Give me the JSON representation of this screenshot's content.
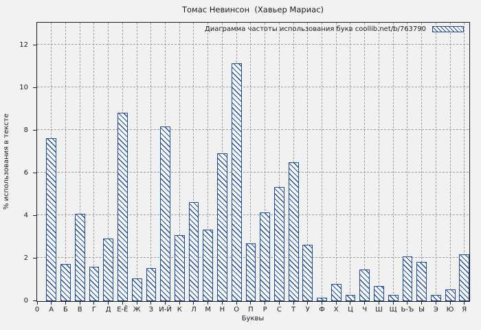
{
  "window": {
    "title": "Томас Невинсон  (Хавьер Мариас)"
  },
  "legend": {
    "label": "Диаграмма частоты использования букв coollib.net/b/763790"
  },
  "axes": {
    "x_label": "Буквы",
    "y_label": "% использования в тексте",
    "x_tick_labels": [
      "0",
      "А",
      "Б",
      "В",
      "Г",
      "Д",
      "Е-Ё",
      "Ж",
      "З",
      "И-Й",
      "К",
      "Л",
      "М",
      "Н",
      "О",
      "П",
      "Р",
      "С",
      "Т",
      "У",
      "Ф",
      "Х",
      "Ц",
      "Ч",
      "Ш",
      "Щ",
      "Ь-Ъ",
      "Ы",
      "Э",
      "Ю",
      "Я"
    ],
    "y_tick_labels": [
      "0",
      "2",
      "4",
      "6",
      "8",
      "10",
      "12"
    ]
  },
  "colors": {
    "bar_blue": "#1b4ba0",
    "background": "#f2f2f2",
    "grid": "#9c9c9c"
  },
  "chart_data": {
    "type": "bar",
    "title": "Томас Невинсон (Хавьер Мариас)",
    "legend_entry": "Диаграмма частоты использования букв coollib.net/b/763790",
    "legend_position": "top-right-inside",
    "xlabel": "Буквы",
    "ylabel": "% использования в тексте",
    "ylim": [
      0,
      13
    ],
    "y_ticks": [
      0,
      2,
      4,
      6,
      8,
      10,
      12
    ],
    "grid": true,
    "hatch": "diagonal-backslash",
    "categories": [
      "А",
      "Б",
      "В",
      "Г",
      "Д",
      "Е-Ё",
      "Ж",
      "З",
      "И-Й",
      "К",
      "Л",
      "М",
      "Н",
      "О",
      "П",
      "Р",
      "С",
      "Т",
      "У",
      "Ф",
      "Х",
      "Ц",
      "Ч",
      "Ш",
      "Щ",
      "Ь-Ъ",
      "Ы",
      "Э",
      "Ю",
      "Я"
    ],
    "values": [
      7.65,
      1.75,
      4.1,
      1.6,
      2.95,
      8.85,
      1.05,
      1.55,
      8.2,
      3.1,
      4.65,
      3.35,
      6.95,
      11.15,
      2.7,
      4.15,
      5.35,
      6.5,
      2.65,
      0.15,
      0.8,
      0.3,
      1.5,
      0.7,
      0.3,
      2.1,
      1.85,
      0.3,
      0.55,
      2.2
    ]
  }
}
